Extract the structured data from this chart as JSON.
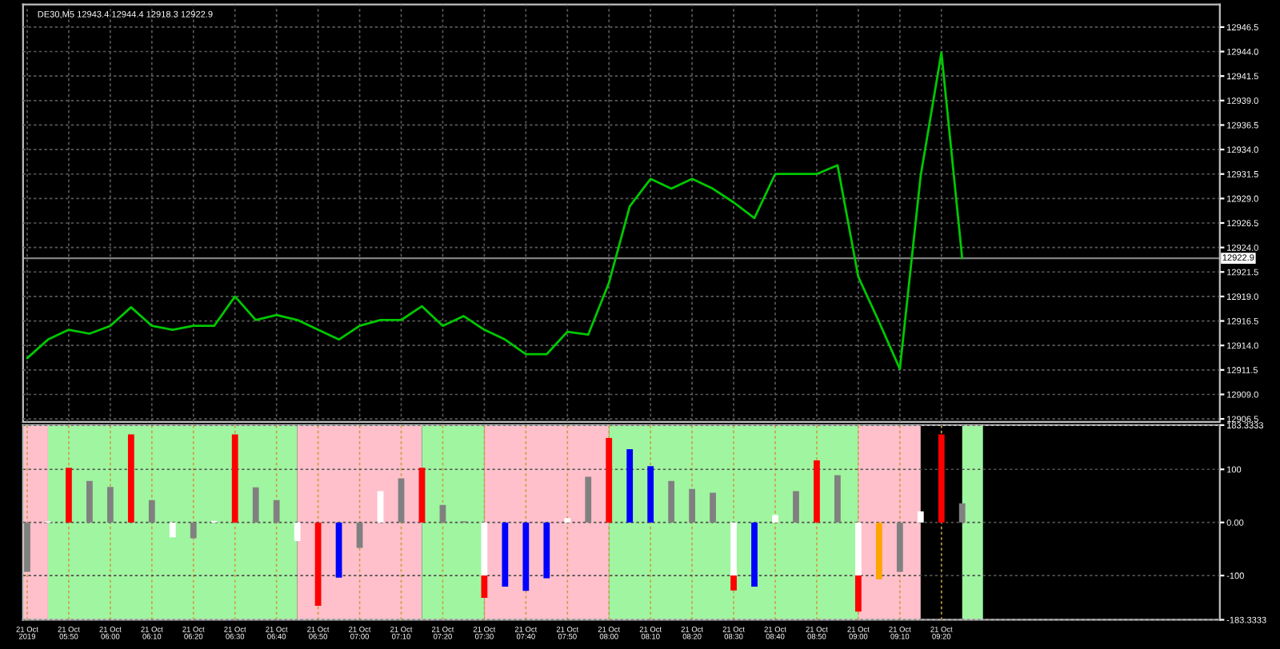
{
  "chart_data": [
    {
      "type": "line",
      "title": "DE30,M5 12943.4 12944.4 12918.3 12922.9",
      "x": [
        "2019-10-21T05:40",
        "2019-10-21T05:45",
        "2019-10-21T05:50",
        "2019-10-21T05:55",
        "2019-10-21T06:00",
        "2019-10-21T06:05",
        "2019-10-21T06:10",
        "2019-10-21T06:15",
        "2019-10-21T06:20",
        "2019-10-21T06:25",
        "2019-10-21T06:30",
        "2019-10-21T06:35",
        "2019-10-21T06:40",
        "2019-10-21T06:45",
        "2019-10-21T06:50",
        "2019-10-21T06:55",
        "2019-10-21T07:00",
        "2019-10-21T07:05",
        "2019-10-21T07:10",
        "2019-10-21T07:15",
        "2019-10-21T07:20",
        "2019-10-21T07:25",
        "2019-10-21T07:30",
        "2019-10-21T07:35",
        "2019-10-21T07:40",
        "2019-10-21T07:45",
        "2019-10-21T07:50",
        "2019-10-21T07:55",
        "2019-10-21T08:00",
        "2019-10-21T08:05",
        "2019-10-21T08:10",
        "2019-10-21T08:15",
        "2019-10-21T08:20",
        "2019-10-21T08:25",
        "2019-10-21T08:30",
        "2019-10-21T08:35",
        "2019-10-21T08:40",
        "2019-10-21T08:45",
        "2019-10-21T08:50",
        "2019-10-21T08:55",
        "2019-10-21T09:00",
        "2019-10-21T09:05",
        "2019-10-21T09:10",
        "2019-10-21T09:15",
        "2019-10-21T09:20",
        "2019-10-21T09:25"
      ],
      "series": [
        {
          "color": "#00c800",
          "values": [
            12912.7,
            12914.6,
            12915.6,
            12915.2,
            12916.0,
            12917.9,
            12916.0,
            12915.6,
            12916.0,
            12916.0,
            12919.0,
            12916.6,
            12917.1,
            12916.6,
            12915.6,
            12914.6,
            12916.0,
            12916.6,
            12916.6,
            12918.0,
            12916.0,
            12917.0,
            12915.6,
            12914.6,
            12913.1,
            12913.1,
            12915.4,
            12915.1,
            12920.4,
            12928.2,
            12931.0,
            12930.0,
            12931.0,
            12930.0,
            12928.6,
            12927.0,
            12931.5,
            12931.5,
            12931.5,
            12932.4,
            12921.0,
            12916.4,
            12911.6,
            12931.3,
            12943.9,
            12922.9
          ]
        }
      ],
      "xlim": [
        "2019-10-21T05:39",
        "2019-10-21T10:27"
      ],
      "ylim": [
        12906.2,
        12948.8
      ],
      "xticks": [
        {
          "value": "2019-10-21T05:40",
          "label": null
        },
        {
          "value": "2019-10-21T05:50",
          "label": null
        },
        {
          "value": "2019-10-21T06:00",
          "label": null
        },
        {
          "value": "2019-10-21T06:10",
          "label": null
        },
        {
          "value": "2019-10-21T06:20",
          "label": null
        },
        {
          "value": "2019-10-21T06:30",
          "label": null
        },
        {
          "value": "2019-10-21T06:40",
          "label": null
        },
        {
          "value": "2019-10-21T06:50",
          "label": null
        },
        {
          "value": "2019-10-21T07:00",
          "label": null
        },
        {
          "value": "2019-10-21T07:10",
          "label": null
        },
        {
          "value": "2019-10-21T07:20",
          "label": null
        },
        {
          "value": "2019-10-21T07:30",
          "label": null
        },
        {
          "value": "2019-10-21T07:40",
          "label": null
        },
        {
          "value": "2019-10-21T07:50",
          "label": null
        },
        {
          "value": "2019-10-21T08:00",
          "label": null
        },
        {
          "value": "2019-10-21T08:10",
          "label": null
        },
        {
          "value": "2019-10-21T08:20",
          "label": null
        },
        {
          "value": "2019-10-21T08:30",
          "label": null
        },
        {
          "value": "2019-10-21T08:40",
          "label": null
        },
        {
          "value": "2019-10-21T08:50",
          "label": null
        },
        {
          "value": "2019-10-21T09:00",
          "label": null
        },
        {
          "value": "2019-10-21T09:10",
          "label": null
        },
        {
          "value": "2019-10-21T09:20",
          "label": null
        }
      ],
      "yticks": [
        12906.5,
        {
          "value": 12909,
          "label": "12909.0"
        },
        12911.5,
        {
          "value": 12914,
          "label": "12914.0"
        },
        12916.5,
        {
          "value": 12919,
          "label": "12919.0"
        },
        12921.5,
        {
          "value": 12924,
          "label": "12924.0"
        },
        12926.5,
        {
          "value": 12929,
          "label": "12929.0"
        },
        12931.5,
        {
          "value": 12934,
          "label": "12934.0"
        },
        12936.5,
        {
          "value": 12939,
          "label": "12939.0"
        },
        12941.5,
        {
          "value": 12944,
          "label": "12944.0"
        },
        12946.5
      ],
      "ref_lines": [
        {
          "axis": "y",
          "value": 12922.9,
          "label": "12922.9",
          "color": "#808080"
        }
      ],
      "tick_labels": "y",
      "grid": true,
      "legend": false,
      "marker": "none",
      "line_style": "solid"
    },
    {
      "type": "bar",
      "stacked": true,
      "x": [
        "2019-10-21T05:40",
        "2019-10-21T05:45",
        "2019-10-21T05:50",
        "2019-10-21T05:55",
        "2019-10-21T06:00",
        "2019-10-21T06:05",
        "2019-10-21T06:10",
        "2019-10-21T06:15",
        "2019-10-21T06:20",
        "2019-10-21T06:25",
        "2019-10-21T06:30",
        "2019-10-21T06:35",
        "2019-10-21T06:40",
        "2019-10-21T06:45",
        "2019-10-21T06:50",
        "2019-10-21T06:55",
        "2019-10-21T07:00",
        "2019-10-21T07:05",
        "2019-10-21T07:10",
        "2019-10-21T07:15",
        "2019-10-21T07:20",
        "2019-10-21T07:25",
        "2019-10-21T07:30",
        "2019-10-21T07:35",
        "2019-10-21T07:40",
        "2019-10-21T07:45",
        "2019-10-21T07:50",
        "2019-10-21T07:55",
        "2019-10-21T08:00",
        "2019-10-21T08:05",
        "2019-10-21T08:10",
        "2019-10-21T08:15",
        "2019-10-21T08:20",
        "2019-10-21T08:25",
        "2019-10-21T08:30",
        "2019-10-21T08:35",
        "2019-10-21T08:40",
        "2019-10-21T08:45",
        "2019-10-21T08:50",
        "2019-10-21T08:55",
        "2019-10-21T09:00",
        "2019-10-21T09:05",
        "2019-10-21T09:10",
        "2019-10-21T09:15",
        "2019-10-21T09:20",
        "2019-10-21T09:25"
      ],
      "series": [
        {
          "color": "#ffffff",
          "values": [
            null,
            2,
            null,
            null,
            null,
            null,
            null,
            -28,
            null,
            3,
            null,
            null,
            null,
            -35,
            null,
            null,
            null,
            59,
            null,
            null,
            null,
            null,
            -100,
            null,
            null,
            null,
            8,
            null,
            null,
            null,
            null,
            null,
            null,
            null,
            -100,
            null,
            14,
            null,
            null,
            null,
            -100,
            null,
            null,
            21,
            null,
            null
          ]
        },
        {
          "color": "#808080",
          "values": [
            -93,
            null,
            null,
            78,
            67,
            null,
            42,
            null,
            -30,
            null,
            null,
            66,
            42,
            null,
            null,
            null,
            -48,
            null,
            83,
            null,
            33,
            2,
            null,
            null,
            null,
            null,
            null,
            86,
            null,
            null,
            null,
            78,
            63,
            56,
            null,
            null,
            null,
            59,
            null,
            89,
            null,
            null,
            -93,
            null,
            null,
            36
          ]
        },
        {
          "color": "#ff0000",
          "values": [
            null,
            null,
            103,
            null,
            null,
            166,
            null,
            null,
            null,
            null,
            166,
            null,
            null,
            null,
            -157,
            null,
            null,
            null,
            null,
            103,
            null,
            null,
            -42,
            null,
            null,
            null,
            null,
            null,
            159,
            null,
            null,
            null,
            null,
            null,
            -28,
            null,
            null,
            null,
            117,
            null,
            -68,
            null,
            null,
            null,
            166,
            null
          ]
        },
        {
          "color": "#0000ff",
          "values": [
            null,
            null,
            null,
            null,
            null,
            null,
            null,
            null,
            null,
            null,
            null,
            null,
            null,
            null,
            null,
            -104,
            null,
            null,
            null,
            null,
            null,
            null,
            null,
            -121,
            -129,
            -105,
            null,
            null,
            null,
            138,
            106,
            null,
            null,
            null,
            null,
            -121,
            null,
            null,
            null,
            null,
            null,
            null,
            null,
            null,
            null,
            null
          ]
        },
        {
          "color": "#ffa500",
          "values": [
            null,
            null,
            null,
            null,
            null,
            null,
            null,
            null,
            null,
            null,
            null,
            null,
            null,
            null,
            null,
            null,
            null,
            null,
            null,
            null,
            null,
            null,
            null,
            null,
            null,
            null,
            null,
            null,
            null,
            null,
            null,
            null,
            null,
            null,
            null,
            null,
            null,
            null,
            null,
            null,
            null,
            -107,
            null,
            null,
            null,
            null
          ]
        }
      ],
      "xlim": [
        "2019-10-21T05:39",
        "2019-10-21T10:27"
      ],
      "ylim": [
        -183.3333,
        183.3333
      ],
      "xticks": [
        {
          "value": "2019-10-21T05:40",
          "label": "21 Oct 2019"
        },
        {
          "value": "2019-10-21T05:50",
          "label": "21 Oct 05:50"
        },
        {
          "value": "2019-10-21T06:00",
          "label": "21 Oct 06:00"
        },
        {
          "value": "2019-10-21T06:10",
          "label": "21 Oct 06:10"
        },
        {
          "value": "2019-10-21T06:20",
          "label": "21 Oct 06:20"
        },
        {
          "value": "2019-10-21T06:30",
          "label": "21 Oct 06:30"
        },
        {
          "value": "2019-10-21T06:40",
          "label": "21 Oct 06:40"
        },
        {
          "value": "2019-10-21T06:50",
          "label": "21 Oct 06:50"
        },
        {
          "value": "2019-10-21T07:00",
          "label": "21 Oct 07:00"
        },
        {
          "value": "2019-10-21T07:10",
          "label": "21 Oct 07:10"
        },
        {
          "value": "2019-10-21T07:20",
          "label": "21 Oct 07:20"
        },
        {
          "value": "2019-10-21T07:30",
          "label": "21 Oct 07:30"
        },
        {
          "value": "2019-10-21T07:40",
          "label": "21 Oct 07:40"
        },
        {
          "value": "2019-10-21T07:50",
          "label": "21 Oct 07:50"
        },
        {
          "value": "2019-10-21T08:00",
          "label": "21 Oct 08:00"
        },
        {
          "value": "2019-10-21T08:10",
          "label": "21 Oct 08:10"
        },
        {
          "value": "2019-10-21T08:20",
          "label": "21 Oct 08:20"
        },
        {
          "value": "2019-10-21T08:30",
          "label": "21 Oct 08:30"
        },
        {
          "value": "2019-10-21T08:40",
          "label": "21 Oct 08:40"
        },
        {
          "value": "2019-10-21T08:50",
          "label": "21 Oct 08:50"
        },
        {
          "value": "2019-10-21T09:00",
          "label": "21 Oct 09:00"
        },
        {
          "value": "2019-10-21T09:10",
          "label": "21 Oct 09:10"
        },
        {
          "value": "2019-10-21T09:20",
          "label": "21 Oct 09:20"
        }
      ],
      "yticks": [
        183.3333,
        100,
        {
          "value": 0,
          "label": "0.00"
        },
        -100,
        -183.3333
      ],
      "bands": [
        {
          "axis": "x",
          "from": "2019-10-21T05:39",
          "to": "2019-10-21T05:45",
          "color": "#ffc0cb"
        },
        {
          "axis": "x",
          "from": "2019-10-21T05:45",
          "to": "2019-10-21T06:45",
          "color": "#a0f5a0"
        },
        {
          "axis": "x",
          "from": "2019-10-21T06:45",
          "to": "2019-10-21T07:15",
          "color": "#ffc0cb"
        },
        {
          "axis": "x",
          "from": "2019-10-21T07:15",
          "to": "2019-10-21T07:30",
          "color": "#a0f5a0"
        },
        {
          "axis": "x",
          "from": "2019-10-21T07:30",
          "to": "2019-10-21T08:00",
          "color": "#ffc0cb"
        },
        {
          "axis": "x",
          "from": "2019-10-21T08:00",
          "to": "2019-10-21T09:00",
          "color": "#a0f5a0"
        },
        {
          "axis": "x",
          "from": "2019-10-21T09:00",
          "to": "2019-10-21T09:15",
          "color": "#ffc0cb"
        },
        {
          "axis": "x",
          "from": "2019-10-21T09:25",
          "to": "2019-10-21T09:30",
          "color": "#a0f5a0"
        }
      ],
      "grid": true,
      "legend": false
    }
  ]
}
